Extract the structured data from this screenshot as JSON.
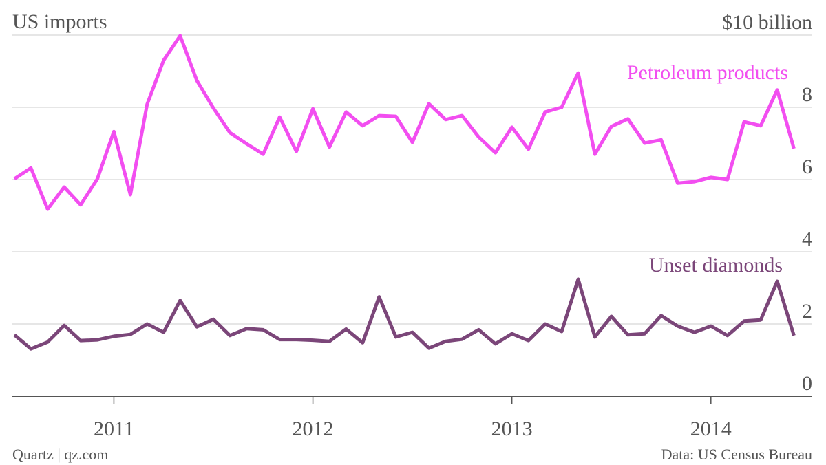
{
  "chart_data": {
    "type": "line",
    "title": "US imports",
    "source": "Data: US Census Bureau",
    "credit": "Quartz | qz.com",
    "x": [
      2010.5,
      2010.583,
      2010.667,
      2010.75,
      2010.833,
      2010.917,
      2011,
      2011.083,
      2011.167,
      2011.25,
      2011.333,
      2011.417,
      2011.5,
      2011.583,
      2011.667,
      2011.75,
      2011.833,
      2011.917,
      2012,
      2012.083,
      2012.167,
      2012.25,
      2012.333,
      2012.417,
      2012.5,
      2012.583,
      2012.667,
      2012.75,
      2012.833,
      2012.917,
      2013,
      2013.083,
      2013.167,
      2013.25,
      2013.333,
      2013.417,
      2013.5,
      2013.583,
      2013.667,
      2013.75,
      2013.833,
      2013.917,
      2014,
      2014.083,
      2014.167,
      2014.25,
      2014.333,
      2014.417
    ],
    "xlim": [
      2010.49,
      2014.44
    ],
    "xticks": [
      2011,
      2012,
      2013,
      2014
    ],
    "ylim": [
      0,
      10.5
    ],
    "yticks": [
      0,
      2,
      4,
      6,
      8,
      {
        "value": 10,
        "label": "$10 billion"
      }
    ],
    "grid": true,
    "series": [
      {
        "name": "Petroleum products",
        "color": "#f24ef0",
        "values": [
          6.02,
          6.32,
          5.18,
          5.79,
          5.3,
          6.02,
          7.33,
          5.58,
          8.08,
          9.3,
          9.98,
          8.74,
          7.98,
          7.3,
          6.99,
          6.7,
          7.73,
          6.78,
          7.96,
          6.9,
          7.87,
          7.49,
          7.77,
          7.75,
          7.03,
          8.1,
          7.66,
          7.77,
          7.18,
          6.74,
          7.45,
          6.84,
          7.87,
          8.0,
          8.95,
          6.7,
          7.47,
          7.68,
          7.01,
          7.1,
          5.9,
          5.94,
          6.06,
          6.0,
          7.6,
          7.49,
          8.48,
          6.86
        ]
      },
      {
        "name": "Unset diamonds",
        "color": "#7b4679",
        "values": [
          1.7,
          1.31,
          1.5,
          1.96,
          1.54,
          1.56,
          1.66,
          1.71,
          2.0,
          1.77,
          2.65,
          1.92,
          2.13,
          1.68,
          1.87,
          1.84,
          1.57,
          1.57,
          1.55,
          1.52,
          1.86,
          1.48,
          2.75,
          1.64,
          1.77,
          1.33,
          1.52,
          1.58,
          1.84,
          1.45,
          1.73,
          1.54,
          2.0,
          1.79,
          3.24,
          1.64,
          2.21,
          1.7,
          1.73,
          2.23,
          1.94,
          1.77,
          1.94,
          1.68,
          2.08,
          2.11,
          3.18,
          1.68
        ]
      }
    ]
  }
}
